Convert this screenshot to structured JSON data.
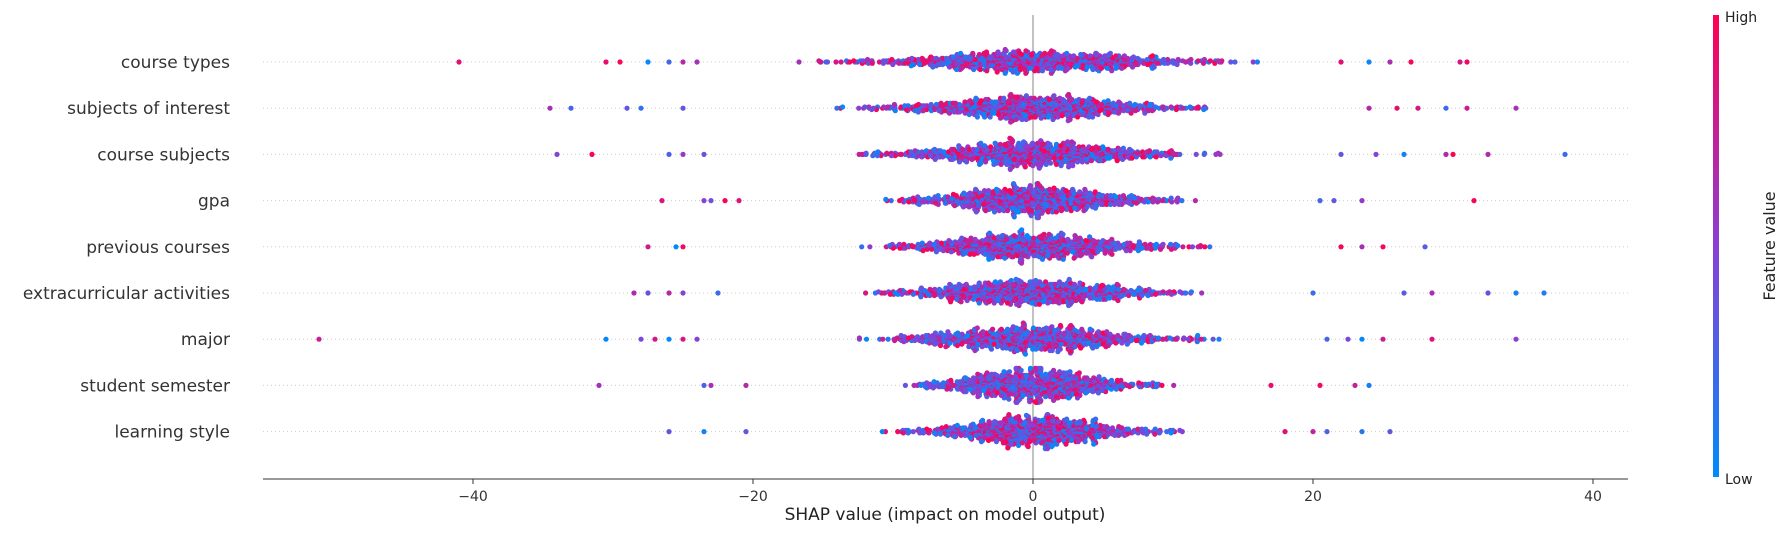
{
  "chart_data": {
    "type": "scatter",
    "subtype": "shap-beeswarm",
    "title": "",
    "xlabel": "SHAP value (impact on model output)",
    "ylabel": "",
    "xlim": [
      -55,
      42.5
    ],
    "xticks": [
      -40,
      -20,
      0,
      20,
      40
    ],
    "grid": false,
    "features": [
      {
        "name": "course types",
        "spread": 10.5,
        "extent": [
          -41,
          31
        ],
        "outliers": [
          -41,
          -30.5,
          -29.5,
          -27.5,
          -26,
          -25,
          -24,
          22,
          24,
          25.5,
          27,
          30.5,
          31
        ]
      },
      {
        "name": "subjects of interest",
        "spread": 9.0,
        "extent": [
          -34.5,
          34.5
        ],
        "outliers": [
          -34.5,
          -33,
          -29,
          -28,
          -25,
          24,
          26,
          27.5,
          29.5,
          31,
          34.5
        ]
      },
      {
        "name": "course subjects",
        "spread": 8.5,
        "extent": [
          -34,
          38
        ],
        "outliers": [
          -34,
          -31.5,
          -26,
          -25,
          -23.5,
          22,
          24.5,
          26.5,
          29.5,
          30,
          32.5,
          38
        ]
      },
      {
        "name": "gpa",
        "spread": 7.5,
        "extent": [
          -26.5,
          31.5
        ],
        "outliers": [
          -26.5,
          -23.5,
          -23,
          -22,
          -21,
          20.5,
          21.5,
          23.5,
          31.5
        ]
      },
      {
        "name": "previous courses",
        "spread": 8.0,
        "extent": [
          -27.5,
          28
        ],
        "outliers": [
          -27.5,
          -25.5,
          -25,
          22,
          23.5,
          25,
          28
        ]
      },
      {
        "name": "extracurricular activities",
        "spread": 8.0,
        "extent": [
          -28.5,
          36.5
        ],
        "outliers": [
          -28.5,
          -27.5,
          -26,
          -25,
          -22.5,
          20,
          26.5,
          28.5,
          32.5,
          34.5,
          36.5
        ]
      },
      {
        "name": "major",
        "spread": 8.5,
        "extent": [
          -51,
          34.5
        ],
        "outliers": [
          -51,
          -30.5,
          -28,
          -27,
          -26,
          -25,
          -24,
          21,
          22.5,
          23.5,
          25,
          28.5,
          34.5
        ]
      },
      {
        "name": "student semester",
        "spread": 6.5,
        "extent": [
          -31,
          24
        ],
        "outliers": [
          -31,
          -23.5,
          -23,
          -20.5,
          17,
          20.5,
          23,
          24
        ]
      },
      {
        "name": "learning style",
        "spread": 7.0,
        "extent": [
          -26,
          25.5
        ],
        "outliers": [
          -26,
          -23.5,
          -20.5,
          18,
          20,
          21,
          23.5,
          25.5
        ]
      }
    ],
    "colorbar": {
      "title": "Feature value",
      "high_label": "High",
      "low_label": "Low",
      "high_color": "#ff0052",
      "mid_color": "#8a3fd6",
      "low_color": "#008bfb"
    },
    "zero_line_color": "#999999"
  }
}
